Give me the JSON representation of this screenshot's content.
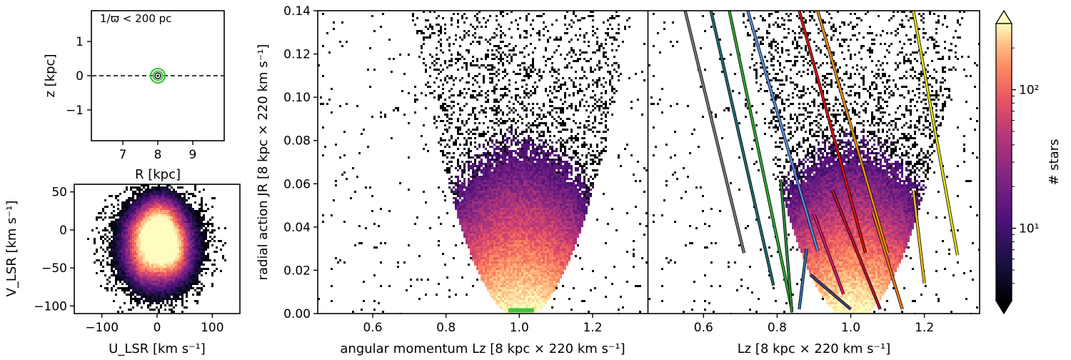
{
  "chart_data": [
    {
      "id": "position_panel",
      "type": "scatter",
      "annotation": "1/ϖ < 200 pc",
      "xlabel": "R [kpc]",
      "ylabel": "z [kpc]",
      "xlim": [
        6.1,
        9.9
      ],
      "ylim": [
        -1.9,
        1.9
      ],
      "xticks": [
        7,
        8,
        9
      ],
      "yticks": [
        1,
        0,
        -1
      ],
      "xtick_labels": [
        "7",
        "8",
        "9"
      ],
      "ytick_labels": [
        "1",
        "0",
        "−1"
      ],
      "midplane_z": 0,
      "sun": {
        "R": 8.0,
        "z": 0.0
      },
      "circle_color": "#3ec43e"
    },
    {
      "id": "velocity_panel",
      "type": "heatmap",
      "xlabel": "U_LSR [km s⁻¹]",
      "ylabel": "V_LSR [km s⁻¹]",
      "xlim": [
        -150,
        150
      ],
      "ylim": [
        -110,
        60
      ],
      "xticks": [
        -100,
        0,
        100
      ],
      "yticks": [
        50,
        0,
        -50,
        -100
      ],
      "xtick_labels": [
        "−100",
        "0",
        "100"
      ],
      "ytick_labels": [
        "50",
        "0",
        "−50",
        "−100"
      ]
    },
    {
      "id": "action_panel_left",
      "type": "heatmap",
      "xlabel": "angular momentum Lz [8 kpc × 220 km s⁻¹]",
      "ylabel": "radial action JR [8 kpc × 220 km s⁻¹]",
      "xlim": [
        0.45,
        1.35
      ],
      "ylim": [
        0.0,
        0.14
      ],
      "xticks": [
        0.6,
        0.8,
        1.0,
        1.2
      ],
      "yticks": [
        0.0,
        0.02,
        0.04,
        0.06,
        0.08,
        0.1,
        0.12,
        0.14
      ],
      "xtick_labels": [
        "0.6",
        "0.8",
        "1.0",
        "1.2"
      ],
      "ytick_labels": [
        "0.00",
        "0.02",
        "0.04",
        "0.06",
        "0.08",
        "0.10",
        "0.12",
        "0.14"
      ],
      "highlight": {
        "x": [
          0.97,
          1.04
        ],
        "y": 0.0015,
        "color": "#3ec43e"
      }
    },
    {
      "id": "action_panel_right",
      "type": "heatmap",
      "xlabel": "Lz [8 kpc × 220 km s⁻¹]",
      "xlim": [
        0.45,
        1.35
      ],
      "ylim": [
        0.0,
        0.14
      ],
      "xticks": [
        0.6,
        0.8,
        1.0,
        1.2
      ],
      "xtick_labels": [
        "0.6",
        "0.8",
        "1.0",
        "1.2"
      ],
      "lines": [
        {
          "color": "#777777",
          "x": [
            0.55,
            0.71
          ],
          "y": [
            0.14,
            0.028
          ]
        },
        {
          "color": "#1e6e6e",
          "x": [
            0.62,
            0.79
          ],
          "y": [
            0.14,
            0.013
          ]
        },
        {
          "color": "#2eaa2e",
          "x": [
            0.67,
            0.84
          ],
          "y": [
            0.14,
            0.002
          ]
        },
        {
          "color": "#5a8ee0",
          "x": [
            0.72,
            0.91
          ],
          "y": [
            0.14,
            0.029
          ]
        },
        {
          "color": "#e01010",
          "x": [
            0.86,
            1.04
          ],
          "y": [
            0.14,
            0.028
          ]
        },
        {
          "color": "#f09010",
          "x": [
            0.91,
            1.1
          ],
          "y": [
            0.14,
            0.028
          ]
        },
        {
          "color": "#e8e010",
          "x": [
            1.17,
            1.29
          ],
          "y": [
            0.14,
            0.027
          ]
        },
        {
          "color": "#2e8a3e",
          "x": [
            0.81,
            0.84
          ],
          "y": [
            0.062,
            0.0005
          ]
        },
        {
          "color": "#2e72b0",
          "x": [
            0.88,
            0.86
          ],
          "y": [
            0.03,
            0.002
          ]
        },
        {
          "color": "#4a4080",
          "x": [
            0.89,
            1.0
          ],
          "y": [
            0.018,
            0.002
          ]
        },
        {
          "color": "#e01870",
          "x": [
            0.9,
            0.98
          ],
          "y": [
            0.046,
            0.009
          ]
        },
        {
          "color": "#c01030",
          "x": [
            0.95,
            1.08
          ],
          "y": [
            0.057,
            0.002
          ]
        },
        {
          "color": "#f07818",
          "x": [
            1.06,
            1.14
          ],
          "y": [
            0.047,
            0.002
          ]
        },
        {
          "color": "#f0c010",
          "x": [
            1.17,
            1.2
          ],
          "y": [
            0.057,
            0.014
          ]
        }
      ]
    },
    {
      "id": "colorbar",
      "type": "colorbar",
      "label": "# stars",
      "scale": "log",
      "range": [
        3,
        300
      ],
      "ticks": [
        10,
        100
      ],
      "tick_labels": [
        "10¹",
        "10²"
      ],
      "colormap": "magma"
    }
  ]
}
